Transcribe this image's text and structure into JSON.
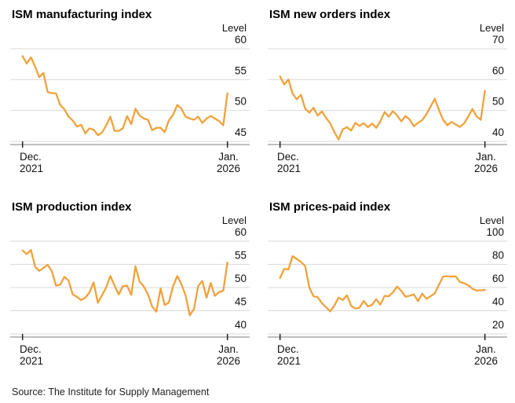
{
  "page": {
    "background": "#ffffff",
    "accent_color": "#f0a23c",
    "source_note": "Source: The Institute for Supply Management"
  },
  "chart_data": [
    {
      "type": "line",
      "title": "ISM manufacturing index",
      "unit_label": "Level",
      "yticks": [
        60,
        55,
        50,
        45
      ],
      "grid": "horizontal",
      "legend": "none",
      "line_color": "#f0a23c",
      "x_axis": {
        "frequency": "monthly",
        "start": {
          "line1": "Dec.",
          "line2": "2021"
        },
        "end": {
          "line1": "Jan.",
          "line2": "2026"
        }
      },
      "values": [
        58.8,
        57.6,
        58.6,
        57.1,
        55.4,
        56.1,
        53.0,
        52.8,
        52.8,
        50.9,
        50.2,
        49.0,
        48.4,
        47.4,
        47.7,
        46.3,
        47.1,
        46.9,
        46.0,
        46.4,
        47.6,
        49.0,
        46.7,
        46.7,
        47.1,
        49.1,
        47.8,
        50.3,
        49.2,
        48.7,
        48.5,
        46.8,
        47.2,
        47.2,
        46.5,
        48.4,
        49.3,
        50.9,
        50.3,
        49.0,
        48.7,
        48.5,
        49.0,
        48.0,
        48.7,
        49.1,
        48.7,
        48.3,
        47.6,
        52.8
      ]
    },
    {
      "type": "line",
      "title": "ISM new orders index",
      "unit_label": "Level",
      "yticks": [
        70,
        60,
        50,
        40
      ],
      "grid": "horizontal",
      "legend": "none",
      "line_color": "#f0a23c",
      "x_axis": {
        "frequency": "monthly",
        "start": {
          "line1": "Dec.",
          "line2": "2021"
        },
        "end": {
          "line1": "Jan.",
          "line2": "2026"
        }
      },
      "values": [
        61.0,
        58.4,
        60.0,
        55.5,
        53.6,
        55.1,
        50.6,
        49.3,
        50.9,
        48.4,
        49.7,
        47.6,
        45.9,
        43.0,
        40.6,
        43.9,
        44.6,
        43.5,
        46.0,
        45.0,
        45.9,
        44.6,
        45.8,
        44.4,
        46.5,
        49.5,
        48.0,
        49.8,
        48.4,
        46.5,
        48.2,
        47.1,
        44.9,
        46.0,
        46.9,
        48.8,
        51.3,
        53.8,
        50.2,
        47.0,
        45.2,
        46.3,
        45.5,
        44.7,
        45.8,
        48.0,
        50.5,
        48.1,
        47.0,
        56.4
      ]
    },
    {
      "type": "line",
      "title": "ISM production index",
      "unit_label": "Level",
      "yticks": [
        60,
        55,
        50,
        45,
        40
      ],
      "grid": "horizontal",
      "legend": "none",
      "line_color": "#f0a23c",
      "x_axis": {
        "frequency": "monthly",
        "start": {
          "line1": "Dec.",
          "line2": "2021"
        },
        "end": {
          "line1": "Jan.",
          "line2": "2026"
        }
      },
      "values": [
        58.0,
        57.2,
        58.1,
        54.5,
        53.6,
        54.2,
        54.9,
        53.5,
        50.4,
        50.6,
        52.3,
        51.5,
        48.5,
        48.0,
        47.3,
        47.8,
        48.9,
        51.1,
        46.7,
        48.3,
        50.0,
        52.5,
        50.4,
        48.5,
        50.3,
        50.4,
        48.4,
        54.6,
        51.3,
        50.2,
        48.5,
        45.9,
        44.8,
        49.8,
        46.2,
        46.8,
        50.3,
        52.5,
        50.7,
        48.3,
        44.0,
        45.4,
        50.3,
        51.4,
        47.8,
        51.0,
        48.2,
        49.0,
        49.3,
        55.4
      ]
    },
    {
      "type": "line",
      "title": "ISM prices-paid index",
      "unit_label": "Level",
      "yticks": [
        100,
        80,
        60,
        40,
        20
      ],
      "grid": "horizontal",
      "legend": "none",
      "line_color": "#f0a23c",
      "x_axis": {
        "frequency": "monthly",
        "start": {
          "line1": "Dec.",
          "line2": "2021"
        },
        "end": {
          "line1": "Jan.",
          "line2": "2026"
        }
      },
      "values": [
        68.2,
        76.1,
        75.6,
        87.1,
        84.6,
        82.2,
        78.5,
        60.0,
        52.5,
        51.7,
        46.6,
        43.0,
        39.4,
        44.5,
        51.3,
        49.2,
        53.2,
        44.2,
        41.8,
        42.6,
        48.4,
        43.8,
        45.1,
        49.9,
        45.2,
        52.9,
        52.5,
        55.8,
        60.9,
        57.0,
        52.1,
        52.9,
        54.0,
        48.3,
        54.8,
        50.3,
        52.5,
        54.9,
        62.4,
        69.4,
        69.8,
        69.4,
        69.7,
        64.8,
        63.7,
        61.9,
        59.0,
        57.4,
        57.6,
        58.0
      ]
    }
  ]
}
